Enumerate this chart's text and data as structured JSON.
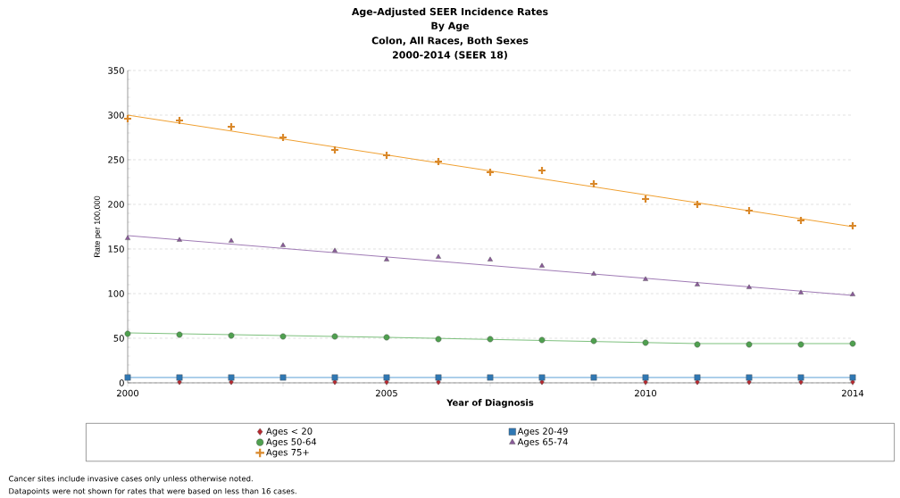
{
  "chart_data": {
    "type": "scatter",
    "title": "Age-Adjusted SEER Incidence Rates",
    "subtitle": "By Age",
    "xlabel": "Year of Diagnosis",
    "ylabel": "Rate per 100,000",
    "annotations": [
      "Colon, All Races, Both Sexes",
      "2000-2014 (SEER 18)",
      "Cancer sites include invasive cases only unless otherwise noted.",
      "Datapoints were not shown for rates that were based on less than 16 cases."
    ],
    "x": [
      2000,
      2001,
      2002,
      2003,
      2004,
      2005,
      2006,
      2007,
      2008,
      2009,
      2010,
      2011,
      2012,
      2013,
      2014
    ],
    "xlim": [
      2000,
      2014
    ],
    "xticks": [
      2000,
      {
        "value": 2003,
        "label": null
      },
      2005,
      {
        "value": 2007,
        "label": null
      },
      {
        "value": 2009,
        "label": null
      },
      2010,
      2014
    ],
    "ylim": [
      0,
      350
    ],
    "yticks": [
      0,
      50,
      100,
      150,
      200,
      250,
      300,
      350
    ],
    "grid": "y",
    "legend": "bottom",
    "series": [
      {
        "name": "Ages < 20",
        "marker": "diamond",
        "color": "#b8282e",
        "values": [
          null,
          1,
          1,
          null,
          1,
          1,
          1,
          null,
          1,
          null,
          1,
          1,
          1,
          1,
          1
        ]
      },
      {
        "name": "Ages 20-49",
        "marker": "square",
        "color": "#2f78b4",
        "values": [
          6,
          6,
          6,
          6,
          6,
          6,
          6,
          6,
          6,
          6,
          6,
          6,
          6,
          6,
          6
        ]
      },
      {
        "name": "Ages 50-64",
        "marker": "circle",
        "color": "#4fa04f",
        "values": [
          55,
          54,
          53,
          52,
          52,
          51,
          49,
          49,
          48,
          47,
          45,
          43,
          43,
          43,
          44
        ]
      },
      {
        "name": "Ages 65-74",
        "marker": "triangle",
        "color": "#8a5a9a",
        "values": [
          162,
          160,
          159,
          154,
          148,
          138,
          141,
          138,
          131,
          122,
          116,
          110,
          107,
          101,
          99
        ]
      },
      {
        "name": "Ages 75+",
        "marker": "cross",
        "color": "#d9882a",
        "values": [
          296,
          294,
          287,
          275,
          261,
          255,
          248,
          236,
          238,
          223,
          206,
          200,
          193,
          182,
          176
        ]
      },
      {
        "type": "line",
        "marker": "none",
        "line_style": "solid",
        "color": "#5a9fd4",
        "x": [
          2000,
          2014
        ],
        "values": [
          6,
          6
        ]
      },
      {
        "type": "line",
        "marker": "none",
        "line_style": "solid",
        "color": "#7cc07c",
        "x": [
          2000,
          2005,
          2011,
          2014
        ],
        "values": [
          56,
          51,
          44,
          44
        ]
      },
      {
        "type": "line",
        "marker": "none",
        "line_style": "solid",
        "color": "#a07ab5",
        "x": [
          2000,
          2014
        ],
        "values": [
          165,
          98
        ]
      },
      {
        "type": "line",
        "marker": "none",
        "line_style": "solid",
        "color": "#f0a030",
        "x": [
          2000,
          2014
        ],
        "values": [
          300,
          175
        ]
      }
    ]
  }
}
